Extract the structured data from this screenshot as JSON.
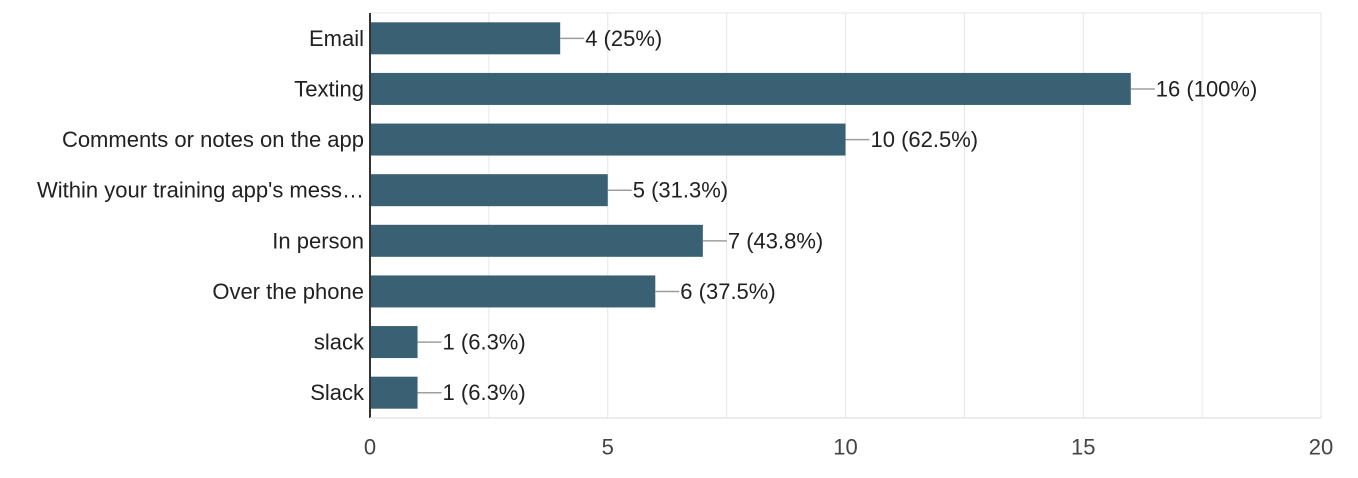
{
  "chart_data": {
    "type": "bar",
    "orientation": "horizontal",
    "title": "",
    "xlabel": "",
    "ylabel": "",
    "categories": [
      "Email",
      "Texting",
      "Comments or notes on the app",
      "Within your training app's mess…",
      "In person",
      "Over the phone",
      "slack",
      "Slack"
    ],
    "values": [
      4,
      16,
      10,
      5,
      7,
      6,
      1,
      1
    ],
    "data_labels": [
      "4 (25%)",
      "16 (100%)",
      "10 (62.5%)",
      "5 (31.3%)",
      "7 (43.8%)",
      "6 (37.5%)",
      "1 (6.3%)",
      "1 (6.3%)"
    ],
    "xlim": [
      0,
      20
    ],
    "xticks": [
      0,
      5,
      10,
      15,
      20
    ],
    "minor_gridlines_every": 2.5,
    "grid": true,
    "colors": {
      "bar": "#3a6073",
      "grid": "#e6e6e6",
      "axis": "#333333",
      "leader": "#9e9e9e"
    }
  }
}
